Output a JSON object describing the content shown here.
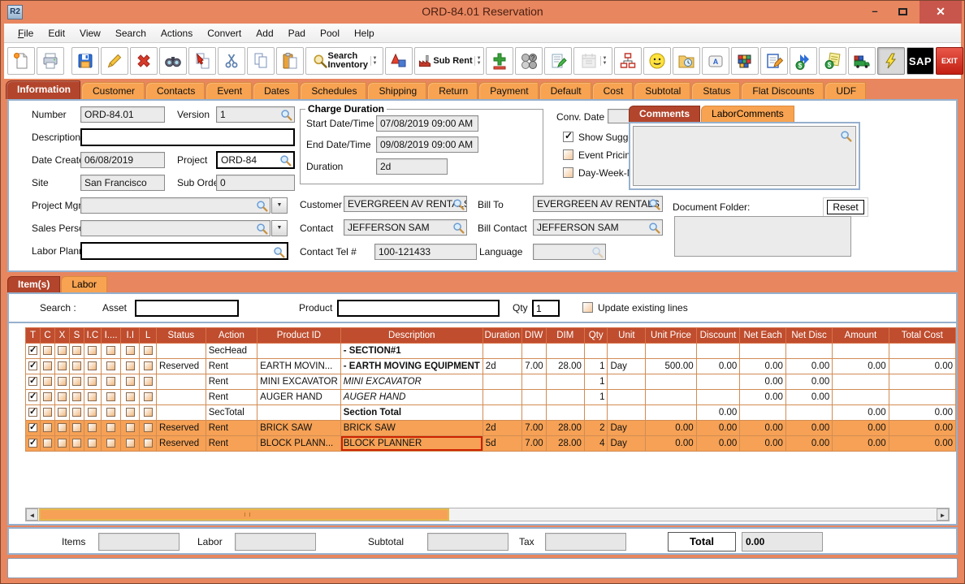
{
  "colors": {
    "frame": "#e8865f",
    "active_tab": "#b2452c",
    "tab": "#f8a351",
    "header_red": "#bf4d2e",
    "row_highlight": "#f6a155",
    "selection_red": "#cc2200",
    "close_red": "#c8564c"
  },
  "window": {
    "title": "ORD-84.01 Reservation",
    "app_icon_text": "R2"
  },
  "menu": {
    "items": [
      "File",
      "Edit",
      "View",
      "Search",
      "Actions",
      "Convert",
      "Add",
      "Pad",
      "Pool",
      "Help"
    ]
  },
  "toolbar": {
    "search_inventory_label": "Search Inventory",
    "sub_rent_label": "Sub Rent",
    "sap_label": "SAP",
    "exit_label": "EXIT"
  },
  "tabs": {
    "active": "Information",
    "items": [
      "Information",
      "Customer",
      "Contacts",
      "Event",
      "Dates",
      "Schedules",
      "Shipping",
      "Return",
      "Payment",
      "Default",
      "Cost",
      "Subtotal",
      "Status",
      "Flat Discounts",
      "UDF"
    ]
  },
  "info": {
    "number_label": "Number",
    "number_value": "ORD-84.01",
    "version_label": "Version",
    "version_value": "1",
    "description_label": "Description",
    "description_value": "",
    "date_created_label": "Date Created",
    "date_created_value": "06/08/2019",
    "project_label": "Project",
    "project_value": "ORD-84",
    "site_label": "Site",
    "site_value": "San Francisco",
    "sub_orders_label": "Sub Orders",
    "sub_orders_value": "0",
    "project_mgr_label": "Project Mgr.",
    "project_mgr_value": "",
    "sales_person_label": "Sales Person",
    "sales_person_value": "",
    "labor_planner_label": "Labor Planner",
    "labor_planner_value": "",
    "charge_duration": {
      "legend": "Charge Duration",
      "start_label": "Start Date/Time",
      "start_value": "07/08/2019 09:00 AM",
      "end_label": "End Date/Time",
      "end_value": "09/08/2019 09:00 AM",
      "duration_label": "Duration",
      "duration_value": "2d"
    },
    "conv_date_label": "Conv. Date",
    "conv_date_value": "",
    "show_suggestions": {
      "label": "Show Suggestions",
      "checked": true
    },
    "event_pricing": {
      "label": "Event Pricing",
      "checked": false
    },
    "dwm_pricing": {
      "label": "Day-Week-Month Pricing",
      "checked": false
    },
    "customer_label": "Customer",
    "customer_value": "EVERGREEN AV RENTALS",
    "bill_to_label": "Bill To",
    "bill_to_value": "EVERGREEN AV RENTALS",
    "contact_label": "Contact",
    "contact_value": "JEFFERSON SAM",
    "bill_contact_label": "Bill Contact",
    "bill_contact_value": "JEFFERSON SAM",
    "contact_tel_label": "Contact Tel #",
    "contact_tel_value": "100-121433",
    "language_label": "Language",
    "language_value": "",
    "comments_tabs": [
      "Comments",
      "LaborComments"
    ],
    "comments_value": "",
    "document_folder_label": "Document Folder:",
    "document_folder_value": "",
    "reset_label": "Reset"
  },
  "items_section": {
    "tabs": [
      "Item(s)",
      "Labor"
    ],
    "search_label": "Search :",
    "asset_label": "Asset",
    "asset_value": "",
    "product_label": "Product",
    "product_value": "",
    "qty_label": "Qty",
    "qty_value": "1",
    "update_lines_label": "Update existing lines",
    "update_lines_checked": false
  },
  "items_table": {
    "checkbox_headers": [
      "T",
      "C",
      "X",
      "S",
      "I.C",
      "I....",
      "I.I",
      "L"
    ],
    "headers": [
      "Status",
      "Action",
      "Product ID",
      "Description",
      "Duration",
      "DIW",
      "DIM",
      "Qty",
      "Unit",
      "Unit Price",
      "Discount",
      "Net Each",
      "Net Disc",
      "Amount",
      "Total Cost"
    ],
    "rows": [
      {
        "checked_cols": [
          "T"
        ],
        "status": "",
        "action": "SecHead",
        "product_id": "",
        "description": "- SECTION#1",
        "desc_style": "bold",
        "duration": "",
        "diw": "",
        "dim": "",
        "qty": "",
        "unit": "",
        "unit_price": "",
        "discount": "",
        "net_each": "",
        "net_disc": "",
        "amount": "",
        "total_cost": "",
        "highlight": false,
        "selected": false
      },
      {
        "checked_cols": [
          "T"
        ],
        "status": "Reserved",
        "action": "Rent",
        "product_id": "EARTH MOVIN...",
        "description": "- EARTH MOVING EQUIPMENT",
        "desc_style": "bold",
        "duration": "2d",
        "diw": "7.00",
        "dim": "28.00",
        "qty": "1",
        "unit": "Day",
        "unit_price": "500.00",
        "discount": "0.00",
        "net_each": "0.00",
        "net_disc": "0.00",
        "amount": "0.00",
        "total_cost": "0.00",
        "highlight": false,
        "selected": false
      },
      {
        "checked_cols": [
          "T"
        ],
        "status": "",
        "action": "Rent",
        "product_id": "MINI EXCAVATOR",
        "description": "MINI EXCAVATOR",
        "desc_style": "italic",
        "duration": "",
        "diw": "",
        "dim": "",
        "qty": "1",
        "unit": "",
        "unit_price": "",
        "discount": "",
        "net_each": "0.00",
        "net_disc": "0.00",
        "amount": "",
        "total_cost": "",
        "highlight": false,
        "selected": false
      },
      {
        "checked_cols": [
          "T"
        ],
        "status": "",
        "action": "Rent",
        "product_id": "AUGER HAND",
        "description": "AUGER HAND",
        "desc_style": "italic",
        "duration": "",
        "diw": "",
        "dim": "",
        "qty": "1",
        "unit": "",
        "unit_price": "",
        "discount": "",
        "net_each": "0.00",
        "net_disc": "0.00",
        "amount": "",
        "total_cost": "",
        "highlight": false,
        "selected": false
      },
      {
        "checked_cols": [
          "T"
        ],
        "status": "",
        "action": "SecTotal",
        "product_id": "",
        "description": "Section Total",
        "desc_style": "bold",
        "duration": "",
        "diw": "",
        "dim": "",
        "qty": "",
        "unit": "",
        "unit_price": "",
        "discount": "0.00",
        "net_each": "",
        "net_disc": "",
        "amount": "0.00",
        "total_cost": "0.00",
        "highlight": false,
        "selected": false
      },
      {
        "checked_cols": [
          "T"
        ],
        "status": "Reserved",
        "action": "Rent",
        "product_id": "BRICK SAW",
        "description": "BRICK SAW",
        "desc_style": "",
        "duration": "2d",
        "diw": "7.00",
        "dim": "28.00",
        "qty": "2",
        "unit": "Day",
        "unit_price": "0.00",
        "discount": "0.00",
        "net_each": "0.00",
        "net_disc": "0.00",
        "amount": "0.00",
        "total_cost": "0.00",
        "highlight": true,
        "selected": false
      },
      {
        "checked_cols": [
          "T"
        ],
        "status": "Reserved",
        "action": "Rent",
        "product_id": "BLOCK PLANN...",
        "description": "BLOCK PLANNER",
        "desc_style": "",
        "duration": "5d",
        "diw": "7.00",
        "dim": "28.00",
        "qty": "4",
        "unit": "Day",
        "unit_price": "0.00",
        "discount": "0.00",
        "net_each": "0.00",
        "net_disc": "0.00",
        "amount": "0.00",
        "total_cost": "0.00",
        "highlight": true,
        "selected": true
      }
    ]
  },
  "totals": {
    "items_label": "Items",
    "items_value": "",
    "labor_label": "Labor",
    "labor_value": "",
    "subtotal_label": "Subtotal",
    "subtotal_value": "",
    "tax_label": "Tax",
    "tax_value": "",
    "total_label": "Total",
    "total_value": "0.00"
  }
}
